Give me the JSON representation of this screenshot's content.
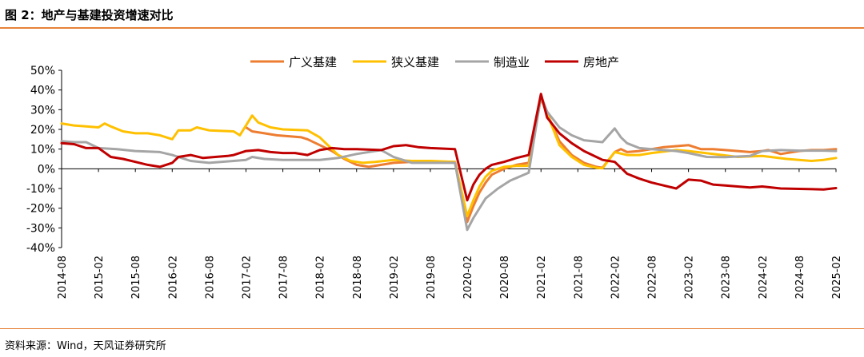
{
  "figure": {
    "title": "图 2：地产与基建投资增速对比",
    "source": "资料来源：Wind，天风证券研究所"
  },
  "chart_data": {
    "type": "line",
    "legend_position": "top",
    "grid": false,
    "ylim": [
      -40,
      50
    ],
    "y_ticks": [
      50,
      40,
      30,
      20,
      10,
      0,
      -10,
      -20,
      -30,
      -40
    ],
    "y_tick_labels": [
      "50%",
      "40%",
      "30%",
      "20%",
      "10%",
      "0%",
      "-10%",
      "-20%",
      "-30%",
      "-40%"
    ],
    "x_range": [
      "2014-08",
      "2025-02"
    ],
    "x_tick_labels": [
      "2014-08",
      "2015-02",
      "2015-08",
      "2016-02",
      "2016-08",
      "2017-02",
      "2017-08",
      "2018-02",
      "2018-08",
      "2019-02",
      "2019-08",
      "2020-02",
      "2020-08",
      "2021-02",
      "2021-08",
      "2022-02",
      "2022-08",
      "2023-02",
      "2023-08",
      "2024-02",
      "2024-08",
      "2025-02"
    ],
    "series": [
      {
        "name": "广义基建",
        "color": "#ed7d31",
        "points": [
          [
            "2017-02",
            21
          ],
          [
            "2017-03",
            19
          ],
          [
            "2017-05",
            18
          ],
          [
            "2017-07",
            17
          ],
          [
            "2017-09",
            16.5
          ],
          [
            "2017-11",
            16
          ],
          [
            "2017-12",
            15
          ],
          [
            "2018-02",
            12
          ],
          [
            "2018-04",
            9
          ],
          [
            "2018-06",
            5
          ],
          [
            "2018-08",
            2
          ],
          [
            "2018-10",
            1
          ],
          [
            "2018-12",
            2
          ],
          [
            "2019-02",
            3
          ],
          [
            "2019-05",
            3.5
          ],
          [
            "2019-08",
            3.5
          ],
          [
            "2019-12",
            3.5
          ],
          [
            "2020-02",
            -27
          ],
          [
            "2020-03",
            -19
          ],
          [
            "2020-04",
            -12
          ],
          [
            "2020-05",
            -7
          ],
          [
            "2020-06",
            -3
          ],
          [
            "2020-08",
            0
          ],
          [
            "2020-10",
            2
          ],
          [
            "2020-12",
            3
          ],
          [
            "2021-02",
            36
          ],
          [
            "2021-03",
            28
          ],
          [
            "2021-05",
            14
          ],
          [
            "2021-07",
            7
          ],
          [
            "2021-09",
            3
          ],
          [
            "2021-11",
            1
          ],
          [
            "2021-12",
            0.5
          ],
          [
            "2022-02",
            8.5
          ],
          [
            "2022-03",
            10
          ],
          [
            "2022-04",
            8.5
          ],
          [
            "2022-06",
            9
          ],
          [
            "2022-08",
            10
          ],
          [
            "2022-10",
            11
          ],
          [
            "2022-12",
            11.5
          ],
          [
            "2023-02",
            12
          ],
          [
            "2023-04",
            10
          ],
          [
            "2023-06",
            10
          ],
          [
            "2023-08",
            9.5
          ],
          [
            "2023-10",
            9
          ],
          [
            "2023-12",
            8.5
          ],
          [
            "2024-02",
            9
          ],
          [
            "2024-03",
            9.5
          ],
          [
            "2024-05",
            7.5
          ],
          [
            "2024-08",
            9
          ],
          [
            "2024-10",
            9.5
          ],
          [
            "2024-12",
            9.5
          ],
          [
            "2025-02",
            10
          ]
        ]
      },
      {
        "name": "狭义基建",
        "color": "#ffc000",
        "points": [
          [
            "2014-08",
            23
          ],
          [
            "2014-10",
            22
          ],
          [
            "2014-12",
            21.5
          ],
          [
            "2015-02",
            21
          ],
          [
            "2015-03",
            23
          ],
          [
            "2015-04",
            21.5
          ],
          [
            "2015-06",
            19
          ],
          [
            "2015-08",
            18
          ],
          [
            "2015-10",
            18
          ],
          [
            "2015-12",
            17
          ],
          [
            "2016-02",
            15
          ],
          [
            "2016-03",
            19.5
          ],
          [
            "2016-05",
            19.5
          ],
          [
            "2016-06",
            21
          ],
          [
            "2016-08",
            19.5
          ],
          [
            "2016-12",
            19
          ],
          [
            "2017-01",
            17
          ],
          [
            "2017-03",
            27
          ],
          [
            "2017-04",
            23.5
          ],
          [
            "2017-06",
            21
          ],
          [
            "2017-08",
            20
          ],
          [
            "2017-12",
            19.5
          ],
          [
            "2018-02",
            16
          ],
          [
            "2018-03",
            13
          ],
          [
            "2018-05",
            7
          ],
          [
            "2018-07",
            4
          ],
          [
            "2018-09",
            3
          ],
          [
            "2018-11",
            3.5
          ],
          [
            "2019-02",
            4.5
          ],
          [
            "2019-05",
            4
          ],
          [
            "2019-08",
            4
          ],
          [
            "2019-12",
            3.5
          ],
          [
            "2020-02",
            -24
          ],
          [
            "2020-03",
            -16
          ],
          [
            "2020-04",
            -9
          ],
          [
            "2020-05",
            -4
          ],
          [
            "2020-06",
            -1
          ],
          [
            "2020-08",
            1
          ],
          [
            "2020-10",
            1.5
          ],
          [
            "2020-12",
            1.5
          ],
          [
            "2021-02",
            37
          ],
          [
            "2021-03",
            28
          ],
          [
            "2021-05",
            12
          ],
          [
            "2021-07",
            6
          ],
          [
            "2021-09",
            2
          ],
          [
            "2021-11",
            0.5
          ],
          [
            "2021-12",
            0.2
          ],
          [
            "2022-02",
            8.5
          ],
          [
            "2022-04",
            7
          ],
          [
            "2022-06",
            7
          ],
          [
            "2022-08",
            8
          ],
          [
            "2022-12",
            9.5
          ],
          [
            "2023-02",
            9
          ],
          [
            "2023-06",
            7.5
          ],
          [
            "2023-10",
            6
          ],
          [
            "2024-02",
            6.5
          ],
          [
            "2024-06",
            5
          ],
          [
            "2024-08",
            4.5
          ],
          [
            "2024-10",
            4
          ],
          [
            "2024-12",
            4.5
          ],
          [
            "2025-02",
            5.5
          ]
        ]
      },
      {
        "name": "制造业",
        "color": "#a5a5a5",
        "points": [
          [
            "2014-08",
            14
          ],
          [
            "2014-10",
            13.5
          ],
          [
            "2014-12",
            13.5
          ],
          [
            "2015-02",
            10.5
          ],
          [
            "2015-05",
            10
          ],
          [
            "2015-08",
            9
          ],
          [
            "2015-12",
            8.5
          ],
          [
            "2016-02",
            7
          ],
          [
            "2016-05",
            4
          ],
          [
            "2016-08",
            3
          ],
          [
            "2016-12",
            4
          ],
          [
            "2017-02",
            4.5
          ],
          [
            "2017-03",
            6
          ],
          [
            "2017-05",
            5
          ],
          [
            "2017-08",
            4.5
          ],
          [
            "2017-12",
            4.5
          ],
          [
            "2018-02",
            4.5
          ],
          [
            "2018-05",
            5.5
          ],
          [
            "2018-08",
            7.5
          ],
          [
            "2018-12",
            9.5
          ],
          [
            "2019-02",
            6
          ],
          [
            "2019-05",
            3
          ],
          [
            "2019-08",
            3
          ],
          [
            "2019-12",
            3
          ],
          [
            "2020-02",
            -31
          ],
          [
            "2020-03",
            -25
          ],
          [
            "2020-05",
            -15
          ],
          [
            "2020-07",
            -10
          ],
          [
            "2020-09",
            -6
          ],
          [
            "2020-12",
            -2
          ],
          [
            "2021-02",
            37
          ],
          [
            "2021-03",
            29
          ],
          [
            "2021-05",
            21
          ],
          [
            "2021-07",
            17
          ],
          [
            "2021-09",
            14.5
          ],
          [
            "2021-12",
            13.5
          ],
          [
            "2022-01",
            17
          ],
          [
            "2022-02",
            20.5
          ],
          [
            "2022-03",
            16
          ],
          [
            "2022-04",
            13
          ],
          [
            "2022-06",
            10.5
          ],
          [
            "2022-08",
            10
          ],
          [
            "2022-12",
            9
          ],
          [
            "2023-02",
            8
          ],
          [
            "2023-05",
            6
          ],
          [
            "2023-08",
            5.9
          ],
          [
            "2023-12",
            6.5
          ],
          [
            "2024-02",
            9
          ],
          [
            "2024-05",
            9.5
          ],
          [
            "2024-08",
            9.2
          ],
          [
            "2024-12",
            9.2
          ],
          [
            "2025-02",
            9
          ]
        ]
      },
      {
        "name": "房地产",
        "color": "#c00000",
        "points": [
          [
            "2014-08",
            13
          ],
          [
            "2014-10",
            12.5
          ],
          [
            "2014-12",
            10.5
          ],
          [
            "2015-02",
            10.5
          ],
          [
            "2015-04",
            6
          ],
          [
            "2015-06",
            5
          ],
          [
            "2015-08",
            3.5
          ],
          [
            "2015-10",
            2
          ],
          [
            "2015-12",
            1
          ],
          [
            "2016-02",
            3
          ],
          [
            "2016-03",
            6
          ],
          [
            "2016-05",
            7
          ],
          [
            "2016-07",
            5.5
          ],
          [
            "2016-09",
            6
          ],
          [
            "2016-11",
            6.5
          ],
          [
            "2016-12",
            7
          ],
          [
            "2017-02",
            9
          ],
          [
            "2017-04",
            9.5
          ],
          [
            "2017-06",
            8.5
          ],
          [
            "2017-08",
            8
          ],
          [
            "2017-10",
            8
          ],
          [
            "2017-12",
            7
          ],
          [
            "2018-02",
            9.5
          ],
          [
            "2018-04",
            10.5
          ],
          [
            "2018-06",
            10
          ],
          [
            "2018-08",
            10
          ],
          [
            "2018-12",
            9.5
          ],
          [
            "2019-02",
            11.5
          ],
          [
            "2019-04",
            12
          ],
          [
            "2019-06",
            11
          ],
          [
            "2019-08",
            10.5
          ],
          [
            "2019-12",
            10
          ],
          [
            "2020-02",
            -16
          ],
          [
            "2020-03",
            -8
          ],
          [
            "2020-04",
            -3
          ],
          [
            "2020-05",
            0
          ],
          [
            "2020-06",
            2
          ],
          [
            "2020-08",
            3.5
          ],
          [
            "2020-10",
            5.5
          ],
          [
            "2020-12",
            7
          ],
          [
            "2021-02",
            38
          ],
          [
            "2021-03",
            26
          ],
          [
            "2021-05",
            18
          ],
          [
            "2021-07",
            13
          ],
          [
            "2021-09",
            9
          ],
          [
            "2021-11",
            6
          ],
          [
            "2021-12",
            4.5
          ],
          [
            "2022-02",
            3.5
          ],
          [
            "2022-03",
            0.5
          ],
          [
            "2022-04",
            -2.5
          ],
          [
            "2022-06",
            -5
          ],
          [
            "2022-08",
            -7
          ],
          [
            "2022-10",
            -8.5
          ],
          [
            "2022-12",
            -10
          ],
          [
            "2023-02",
            -5.5
          ],
          [
            "2023-04",
            -6
          ],
          [
            "2023-06",
            -8
          ],
          [
            "2023-08",
            -8.5
          ],
          [
            "2023-12",
            -9.5
          ],
          [
            "2024-02",
            -9
          ],
          [
            "2024-05",
            -10
          ],
          [
            "2024-08",
            -10.2
          ],
          [
            "2024-12",
            -10.5
          ],
          [
            "2025-02",
            -9.8
          ]
        ]
      }
    ]
  }
}
